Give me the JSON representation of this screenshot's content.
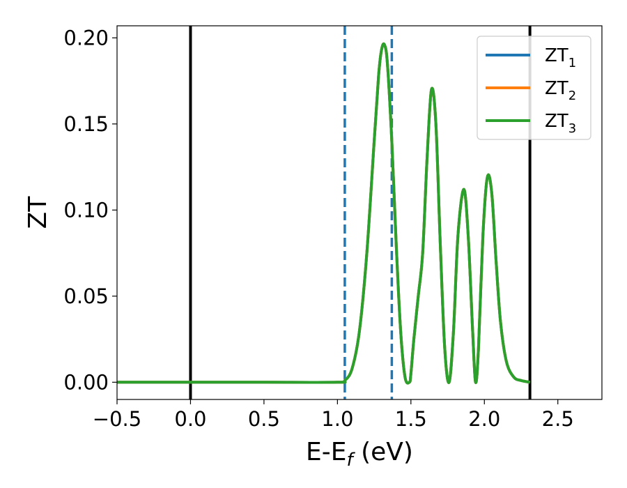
{
  "chart_data": {
    "type": "line",
    "title": "",
    "xlabel": {
      "main": "E-E",
      "sub": "f",
      "suffix": " (eV)"
    },
    "ylabel": "ZT",
    "xlim": [
      -0.5,
      2.8
    ],
    "ylim": [
      -0.01,
      0.207
    ],
    "x_ticks": [
      -0.5,
      0.0,
      0.5,
      1.0,
      1.5,
      2.0,
      2.5
    ],
    "x_tick_labels": [
      "−0.5",
      "0.0",
      "0.5",
      "1.0",
      "1.5",
      "2.0",
      "2.5"
    ],
    "y_ticks": [
      0.0,
      0.05,
      0.1,
      0.15,
      0.2
    ],
    "y_tick_labels": [
      "0.00",
      "0.05",
      "0.10",
      "0.15",
      "0.20"
    ],
    "grid": false,
    "legend_position": "top-right",
    "vertical_lines": [
      {
        "x": 0.0,
        "style": "solid",
        "color": "#000000"
      },
      {
        "x": 2.31,
        "style": "solid",
        "color": "#000000"
      },
      {
        "x": 1.05,
        "style": "dashed",
        "color": "#1f77b4"
      },
      {
        "x": 1.37,
        "style": "dashed",
        "color": "#1f77b4"
      }
    ],
    "series": [
      {
        "name": "ZT",
        "sub": "1",
        "color": "#1f77b4"
      },
      {
        "name": "ZT",
        "sub": "2",
        "color": "#ff7f0e"
      },
      {
        "name": "ZT",
        "sub": "3",
        "color": "#2ca02c"
      }
    ],
    "x": [
      -0.5,
      0.0,
      0.5,
      1.0,
      1.05,
      1.1,
      1.15,
      1.2,
      1.25,
      1.28,
      1.3,
      1.32,
      1.34,
      1.37,
      1.4,
      1.43,
      1.46,
      1.49,
      1.5,
      1.52,
      1.55,
      1.58,
      1.61,
      1.64,
      1.67,
      1.7,
      1.73,
      1.76,
      1.79,
      1.82,
      1.86,
      1.89,
      1.92,
      1.94,
      1.96,
      1.99,
      2.02,
      2.05,
      2.08,
      2.11,
      2.15,
      2.2,
      2.25,
      2.31
    ],
    "values": [
      0.0,
      0.0,
      0.0,
      0.0,
      0.001,
      0.008,
      0.03,
      0.075,
      0.14,
      0.178,
      0.193,
      0.196,
      0.185,
      0.14,
      0.08,
      0.03,
      0.003,
      0.0,
      0.005,
      0.025,
      0.05,
      0.075,
      0.13,
      0.17,
      0.15,
      0.08,
      0.02,
      0.0,
      0.03,
      0.085,
      0.112,
      0.085,
      0.03,
      0.0,
      0.02,
      0.085,
      0.119,
      0.11,
      0.07,
      0.035,
      0.012,
      0.003,
      0.001,
      0.0
    ]
  }
}
